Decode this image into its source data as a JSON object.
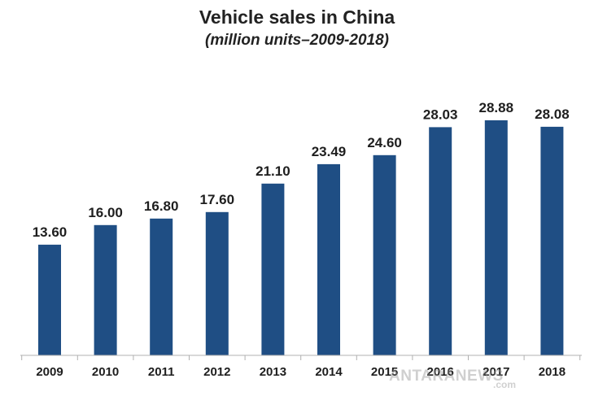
{
  "chart_data": {
    "type": "bar",
    "title": "Vehicle sales in China",
    "subtitle": "(million units–2009-2018)",
    "categories": [
      "2009",
      "2010",
      "2011",
      "2012",
      "2013",
      "2014",
      "2015",
      "2016",
      "2017",
      "2018"
    ],
    "values": [
      13.6,
      16.0,
      16.8,
      17.6,
      21.1,
      23.49,
      24.6,
      28.03,
      28.88,
      28.08
    ],
    "value_labels": [
      "13.60",
      "16.00",
      "16.80",
      "17.60",
      "21.10",
      "23.49",
      "24.60",
      "28.03",
      "28.88",
      "28.08"
    ],
    "ylim": [
      0,
      30
    ],
    "grid": false,
    "xlabel": "",
    "ylabel": "",
    "bar_color": "#1f4e84",
    "axis_color": "#b0b0b0"
  },
  "watermark": {
    "text": "ANTARANEWS",
    "domain": ".com"
  }
}
